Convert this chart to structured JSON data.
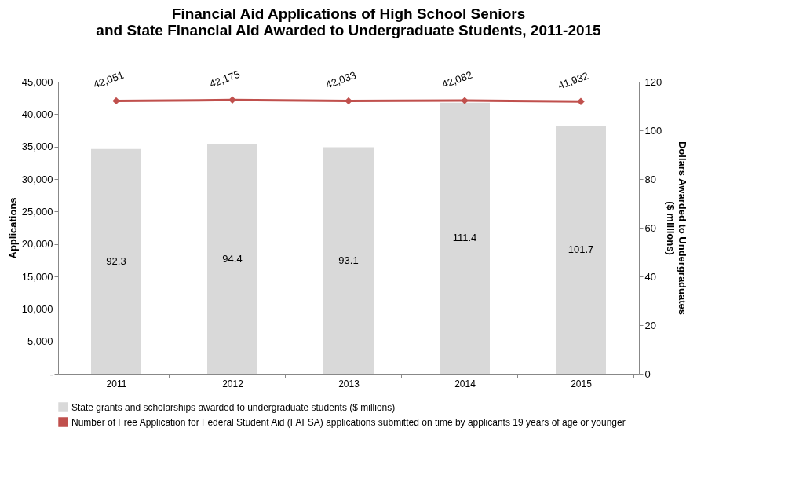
{
  "chart_data": {
    "type": "bar",
    "title": "Financial Aid Applications of High School Seniors\nand State Financial Aid Awarded to Undergraduate Students, 2011-2015",
    "ylabel": "Applications",
    "y2label": "Dollars Awarded to Undergraduates\n($ millions)",
    "categories": [
      "2011",
      "2012",
      "2013",
      "2014",
      "2015"
    ],
    "series": [
      {
        "name": "State grants and scholarships awarded to undergraduate students ($ millions)",
        "color": "#d9d9d9",
        "axis": "y2",
        "values": [
          92.3,
          94.4,
          93.1,
          111.4,
          101.7
        ]
      },
      {
        "name": "Number of Free Application for Federal Student Aid (FAFSA) applications submitted on time by applicants 19 years of age or younger",
        "type": "line",
        "color": "#c0504d",
        "marker": "diamond",
        "line_style": "solid",
        "values": [
          42051,
          42175,
          42033,
          42082,
          41932
        ],
        "value_labels": [
          "42,051",
          "42,175",
          "42,033",
          "42,082",
          "41,932"
        ]
      }
    ],
    "ylim": [
      0,
      45000
    ],
    "yticks": [
      {
        "value": 0,
        "label": "-"
      },
      {
        "value": 5000,
        "label": "5,000"
      },
      {
        "value": 10000,
        "label": "10,000"
      },
      {
        "value": 15000,
        "label": "15,000"
      },
      {
        "value": 20000,
        "label": "20,000"
      },
      {
        "value": 25000,
        "label": "25,000"
      },
      {
        "value": 30000,
        "label": "30,000"
      },
      {
        "value": 35000,
        "label": "35,000"
      },
      {
        "value": 40000,
        "label": "40,000"
      },
      {
        "value": 45000,
        "label": "45,000"
      }
    ],
    "y2lim": [
      0,
      120
    ],
    "y2ticks": [
      0,
      20,
      40,
      60,
      80,
      100,
      120
    ],
    "data_labels": true,
    "grid": false,
    "legend": "bottom"
  }
}
